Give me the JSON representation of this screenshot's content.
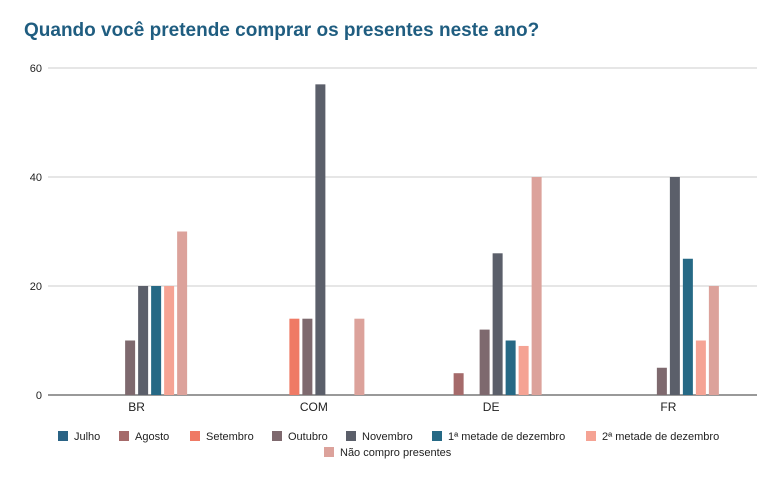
{
  "chart_data": {
    "type": "bar",
    "title": "Quando você pretende comprar os presentes neste ano?",
    "xlabel": "",
    "ylabel": "",
    "ylim": [
      0,
      60
    ],
    "yticks": [
      0,
      20,
      40,
      60
    ],
    "grid": true,
    "legend_position": "bottom",
    "categories": [
      "BR",
      "COM",
      "DE",
      "FR"
    ],
    "series": [
      {
        "name": "Julho",
        "color": "#2a6385",
        "values": [
          0,
          0,
          0,
          0
        ]
      },
      {
        "name": "Agosto",
        "color": "#a56a6a",
        "values": [
          0,
          0,
          4,
          0
        ]
      },
      {
        "name": "Setembro",
        "color": "#ef7a65",
        "values": [
          0,
          14,
          0,
          0
        ]
      },
      {
        "name": "Outubro",
        "color": "#7e696e",
        "values": [
          10,
          14,
          12,
          5
        ]
      },
      {
        "name": "Novembro",
        "color": "#5b5f6a",
        "values": [
          20,
          57,
          26,
          40
        ]
      },
      {
        "name": "1ª metade de dezembro",
        "color": "#266985",
        "values": [
          20,
          0,
          10,
          25
        ]
      },
      {
        "name": "2ª metade de dezembro",
        "color": "#f5a394",
        "values": [
          20,
          0,
          9,
          10
        ]
      },
      {
        "name": "Não compro presentes",
        "color": "#dca29b",
        "values": [
          30,
          14,
          40,
          20
        ]
      }
    ]
  }
}
